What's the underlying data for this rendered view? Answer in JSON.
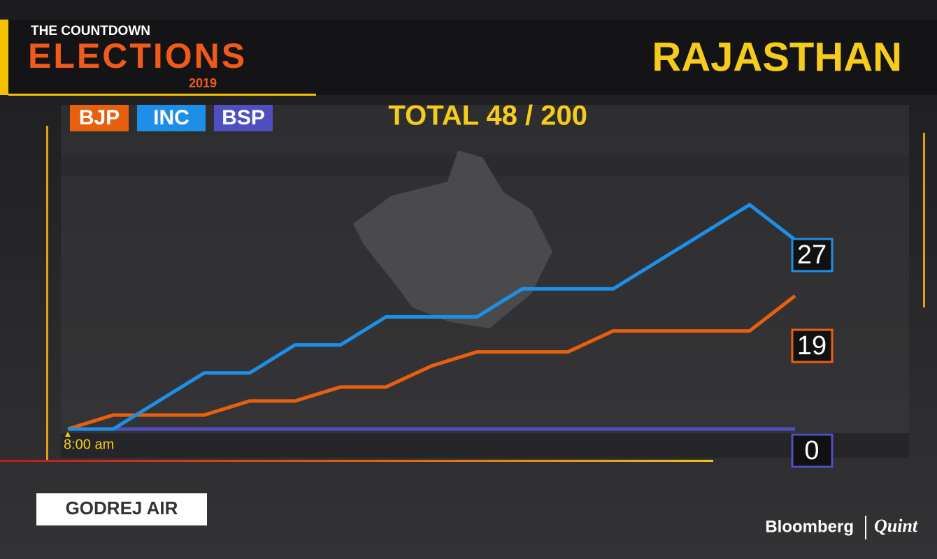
{
  "header": {
    "kicker": "THE COUNTDOWN",
    "brand": "ELECTIONS",
    "year": "2019"
  },
  "sponsor": "GODREJ AIR",
  "footer": {
    "brand": "Bloomberg",
    "partner": "Quint"
  },
  "chart_data": {
    "type": "line",
    "title": "RAJASTHAN",
    "subtitle": "TOTAL 48 / 200",
    "categories": [
      "8:00 am",
      null,
      null,
      null,
      null,
      null,
      null,
      null,
      null,
      null,
      null,
      null,
      null,
      null,
      null,
      null,
      null
    ],
    "series": [
      {
        "name": "BJP",
        "color": "#e8600f",
        "values": [
          0,
          2,
          2,
          2,
          4,
          4,
          6,
          6,
          9,
          11,
          11,
          11,
          14,
          14,
          14,
          14,
          19
        ]
      },
      {
        "name": "INC",
        "color": "#1e8fe8",
        "values": [
          0,
          0,
          4,
          8,
          8,
          12,
          12,
          16,
          16,
          16,
          20,
          20,
          20,
          24,
          28,
          32,
          27
        ]
      },
      {
        "name": "BSP",
        "color": "#4f4fc0",
        "values": [
          0,
          0,
          0,
          0,
          0,
          0,
          0,
          0,
          0,
          0,
          0,
          0,
          0,
          0,
          0,
          0,
          0
        ]
      }
    ],
    "ylim": [
      0,
      32
    ],
    "grid": false
  }
}
